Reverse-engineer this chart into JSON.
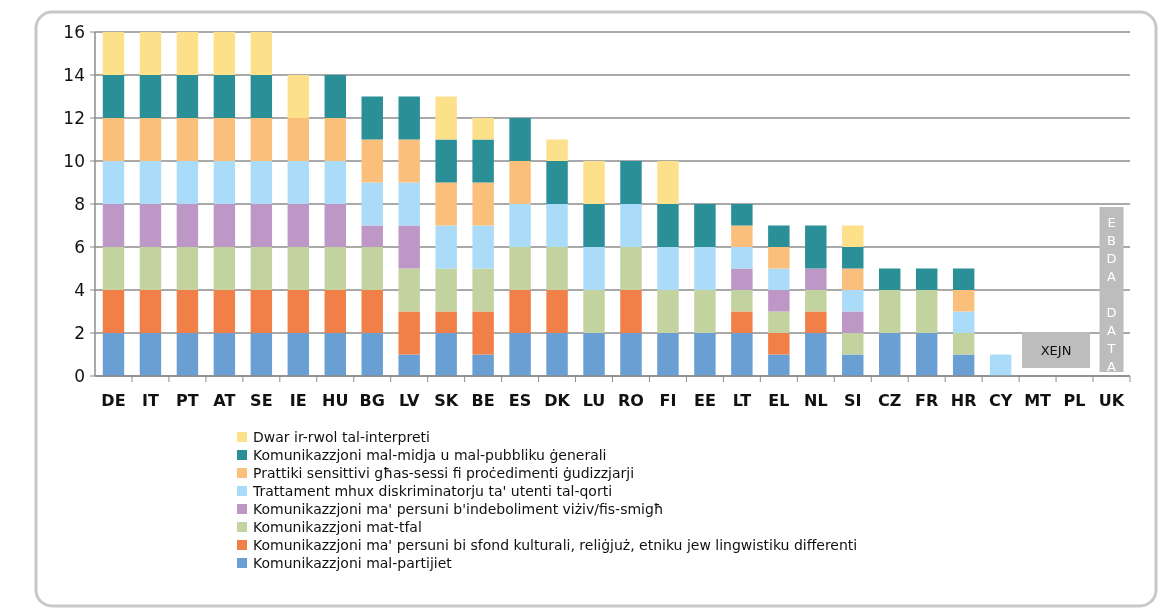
{
  "chart_data": {
    "type": "bar",
    "stacked": true,
    "categories": [
      "DE",
      "IT",
      "PT",
      "AT",
      "SE",
      "IE",
      "HU",
      "BG",
      "LV",
      "SK",
      "BE",
      "ES",
      "DK",
      "LU",
      "RO",
      "FI",
      "EE",
      "LT",
      "EL",
      "NL",
      "SI",
      "CZ",
      "FR",
      "HR",
      "CY",
      "MT",
      "PL",
      "UK"
    ],
    "series": [
      {
        "name": "Komunikazzjoni mal-partijiet",
        "color": "#6a9fd4",
        "values": [
          2,
          2,
          2,
          2,
          2,
          2,
          2,
          2,
          1,
          2,
          1,
          2,
          2,
          2,
          2,
          2,
          2,
          2,
          1,
          2,
          1,
          2,
          2,
          1,
          0,
          null,
          null,
          null
        ]
      },
      {
        "name": "Komunikazzjoni ma' persuni bi sfond kulturali, reliġjuż, etniku jew lingwistiku differenti",
        "color": "#f07f48",
        "values": [
          2,
          2,
          2,
          2,
          2,
          2,
          2,
          2,
          2,
          1,
          2,
          2,
          2,
          0,
          2,
          0,
          0,
          1,
          1,
          1,
          0,
          0,
          0,
          0,
          0,
          null,
          null,
          null
        ]
      },
      {
        "name": "Komunikazzjoni mat-tfal",
        "color": "#c3d3a0",
        "values": [
          2,
          2,
          2,
          2,
          2,
          2,
          2,
          2,
          2,
          2,
          2,
          2,
          2,
          2,
          2,
          2,
          2,
          1,
          1,
          1,
          1,
          2,
          2,
          1,
          0,
          null,
          null,
          null
        ]
      },
      {
        "name": "Komunikazzjoni ma' persuni b'indeboliment viżiv/fis-smigħ",
        "color": "#bd97c6",
        "values": [
          2,
          2,
          2,
          2,
          2,
          2,
          2,
          1,
          2,
          0,
          0,
          0,
          0,
          0,
          0,
          0,
          0,
          1,
          1,
          1,
          1,
          0,
          0,
          0,
          0,
          null,
          null,
          null
        ]
      },
      {
        "name": "Trattament mhux diskriminatorju ta' utenti tal-qorti",
        "color": "#aadcfa",
        "values": [
          2,
          2,
          2,
          2,
          2,
          2,
          2,
          2,
          2,
          2,
          2,
          2,
          2,
          2,
          2,
          2,
          2,
          1,
          1,
          0,
          1,
          0,
          0,
          1,
          1,
          null,
          null,
          null
        ]
      },
      {
        "name": "Prattiki sensittivi għas-sessi fi proċedimenti ġudizzjarji",
        "color": "#fbbf7c",
        "values": [
          2,
          2,
          2,
          2,
          2,
          2,
          2,
          2,
          2,
          2,
          2,
          2,
          0,
          0,
          0,
          0,
          0,
          1,
          1,
          0,
          1,
          0,
          0,
          1,
          0,
          null,
          null,
          null
        ]
      },
      {
        "name": "Komunikazzjoni mal-midja u mal-pubbliku ġenerali",
        "color": "#2a8f96",
        "values": [
          2,
          2,
          2,
          2,
          2,
          0,
          2,
          2,
          2,
          2,
          2,
          2,
          2,
          2,
          2,
          2,
          2,
          1,
          1,
          2,
          1,
          1,
          1,
          1,
          0,
          null,
          null,
          null
        ]
      },
      {
        "name": "Dwar ir-rwol tal-interpreti",
        "color": "#fde08a",
        "values": [
          2,
          2,
          2,
          2,
          2,
          2,
          0,
          0,
          0,
          2,
          1,
          0,
          1,
          2,
          0,
          2,
          0,
          0,
          0,
          0,
          1,
          0,
          0,
          0,
          0,
          null,
          null,
          null
        ]
      }
    ],
    "ylim": [
      0,
      16
    ],
    "yticks": [
      0,
      2,
      4,
      6,
      8,
      10,
      12,
      14,
      16
    ],
    "grid": "y",
    "legend": "bottom",
    "annotations": [
      "XEJN",
      "EBDA DATA"
    ]
  }
}
